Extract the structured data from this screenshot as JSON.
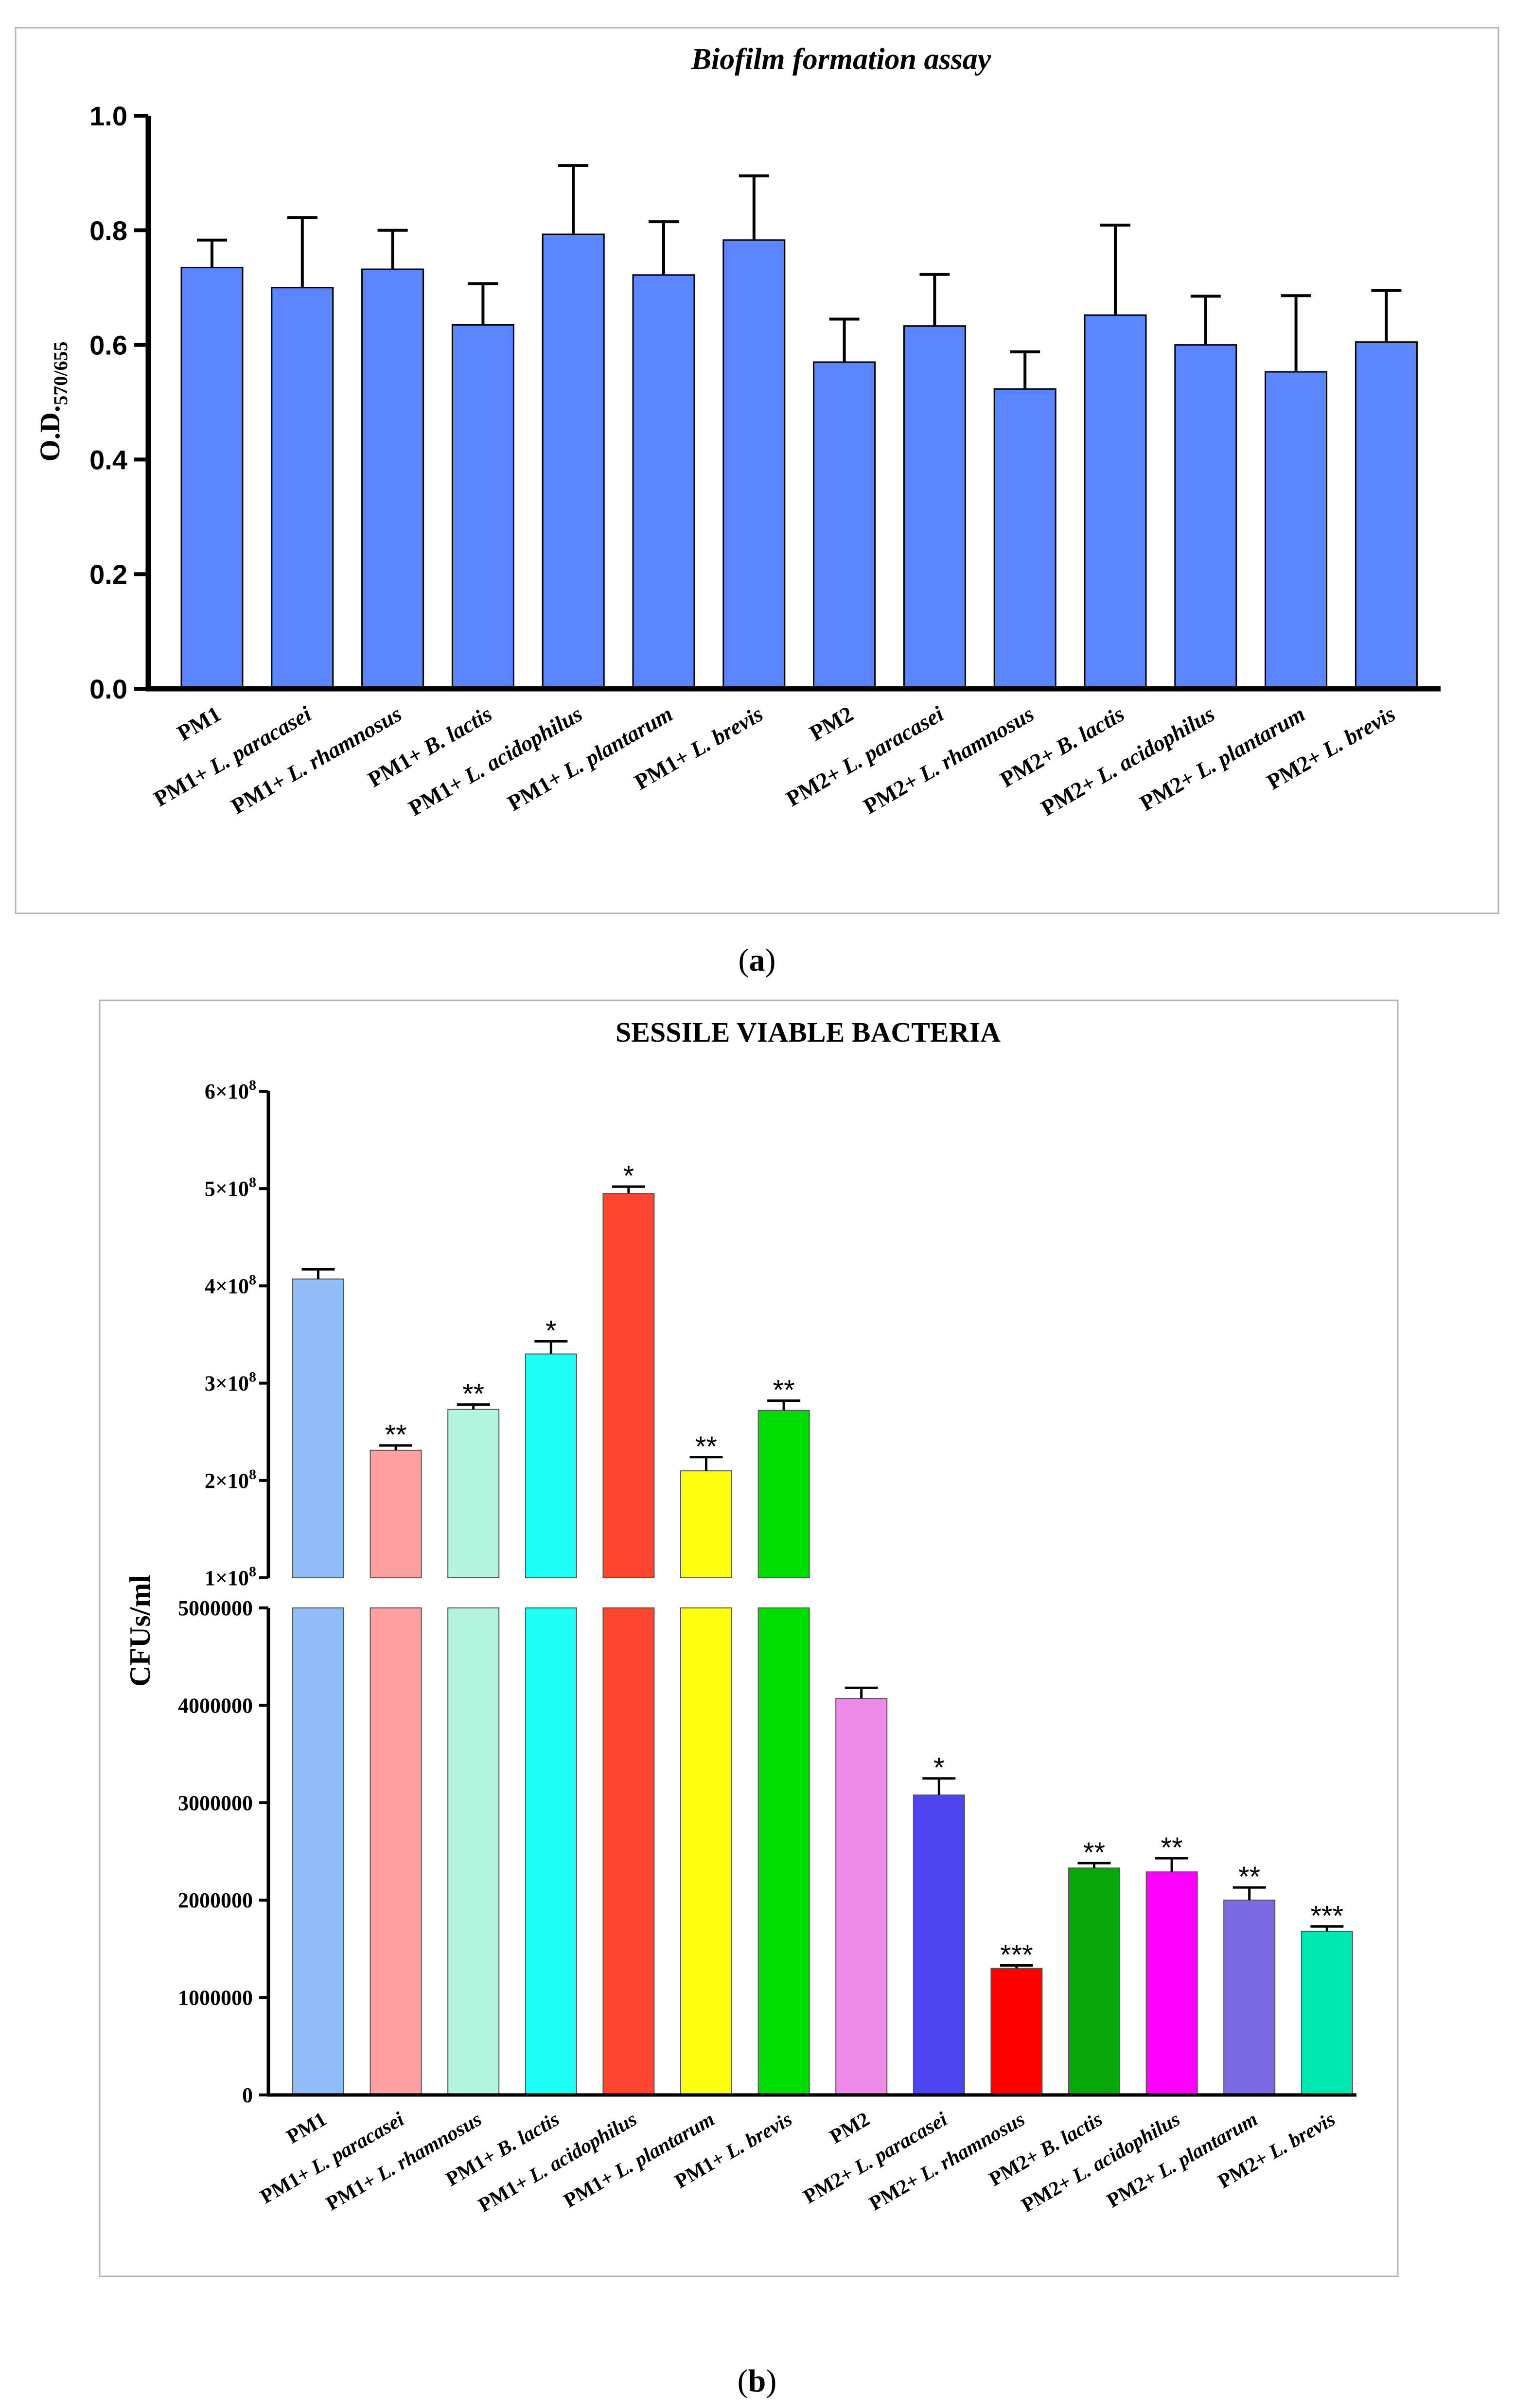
{
  "panel_a": {
    "label": "(a)"
  },
  "panel_b": {
    "label": "(b)"
  },
  "chart_data": [
    {
      "id": "a",
      "type": "bar",
      "title": "Biofilm formation assay",
      "xlabel": "",
      "ylabel": "O.D.",
      "ylabel_sub": "570/655",
      "ylim": [
        0,
        1.0
      ],
      "yticks": [
        0.0,
        0.2,
        0.4,
        0.6,
        0.8,
        1.0
      ],
      "ytick_labels": [
        "0.0",
        "0.2",
        "0.4",
        "0.6",
        "0.8",
        "1.0"
      ],
      "grid": false,
      "categories": [
        {
          "prefix": "PM1",
          "species": ""
        },
        {
          "prefix": "PM1+ ",
          "species": "L. paracasei"
        },
        {
          "prefix": "PM1+ ",
          "species": "L. rhamnosus"
        },
        {
          "prefix": "PM1+ ",
          "species": "B. lactis"
        },
        {
          "prefix": "PM1+ ",
          "species": "L. acidophilus"
        },
        {
          "prefix": "PM1+ ",
          "species": "L. plantarum"
        },
        {
          "prefix": "PM1+ ",
          "species": "L. brevis"
        },
        {
          "prefix": "PM2",
          "species": ""
        },
        {
          "prefix": "PM2+ ",
          "species": "L. paracasei"
        },
        {
          "prefix": "PM2+ ",
          "species": "L. rhamnosus"
        },
        {
          "prefix": "PM2+ ",
          "species": "B. lactis"
        },
        {
          "prefix": "PM2+ ",
          "species": "L. acidophilus"
        },
        {
          "prefix": "PM2+ ",
          "species": "L. plantarum"
        },
        {
          "prefix": "PM2+ ",
          "species": "L. brevis"
        }
      ],
      "values": [
        0.735,
        0.7,
        0.732,
        0.635,
        0.793,
        0.722,
        0.783,
        0.57,
        0.633,
        0.523,
        0.652,
        0.6,
        0.553,
        0.605
      ],
      "errors": [
        0.048,
        0.122,
        0.068,
        0.072,
        0.12,
        0.093,
        0.112,
        0.075,
        0.09,
        0.065,
        0.157,
        0.085,
        0.133,
        0.09
      ],
      "bar_color": "#5b85ff"
    },
    {
      "id": "b",
      "type": "bar",
      "title": "SESSILE VIABLE BACTERIA",
      "xlabel": "",
      "ylabel": "CFUs/ml",
      "axis_break": true,
      "upper_ylim": [
        100000000,
        600000000
      ],
      "upper_ytick_labels": [
        {
          "mant": "1×10",
          "exp": "8"
        },
        {
          "mant": "2×10",
          "exp": "8"
        },
        {
          "mant": "3×10",
          "exp": "8"
        },
        {
          "mant": "4×10",
          "exp": "8"
        },
        {
          "mant": "5×10",
          "exp": "8"
        },
        {
          "mant": "6×10",
          "exp": "8"
        }
      ],
      "lower_ylim": [
        0,
        5000000
      ],
      "lower_ytick_labels": [
        "0",
        "1000000",
        "2000000",
        "3000000",
        "4000000",
        "5000000"
      ],
      "grid": false,
      "categories": [
        {
          "prefix": "PM1",
          "species": ""
        },
        {
          "prefix": "PM1+ ",
          "species": "L. paracasei"
        },
        {
          "prefix": "PM1+ ",
          "species": "L. rhamnosus"
        },
        {
          "prefix": "PM1+ ",
          "species": "B. lactis"
        },
        {
          "prefix": "PM1+ ",
          "species": "L. acidophilus"
        },
        {
          "prefix": "PM1+ ",
          "species": "L. plantarum"
        },
        {
          "prefix": "PM1+ ",
          "species": "L. brevis"
        },
        {
          "prefix": "PM2",
          "species": ""
        },
        {
          "prefix": "PM2+ ",
          "species": "L. paracasei"
        },
        {
          "prefix": "PM2+ ",
          "species": "L. rhamnosus"
        },
        {
          "prefix": "PM2+ ",
          "species": "B. lactis"
        },
        {
          "prefix": "PM2+ ",
          "species": "L. acidophilus"
        },
        {
          "prefix": "PM2+ ",
          "species": "L. plantarum"
        },
        {
          "prefix": "PM2+ ",
          "species": "L. brevis"
        }
      ],
      "values": [
        407000000,
        231000000,
        273000000,
        330000000,
        495000000,
        210000000,
        272000000,
        4070000,
        3080000,
        1300000,
        2330000,
        2290000,
        2000000,
        1680000
      ],
      "errors": [
        10000000,
        5000000,
        5000000,
        13000000,
        7000000,
        14000000,
        10000000,
        110000,
        170000,
        30000,
        50000,
        140000,
        130000,
        50000
      ],
      "significance": [
        "",
        "**",
        "**",
        "*",
        "*",
        "**",
        "**",
        "",
        "*",
        "***",
        "**",
        "**",
        "**",
        "***"
      ],
      "colors": [
        "#90bcf7",
        "#ff9f9f",
        "#b3f5df",
        "#1ffff8",
        "#ff4630",
        "#ffff11",
        "#00dc00",
        "#ee8ae8",
        "#4b45ef",
        "#ff0000",
        "#07a807",
        "#ff00ff",
        "#7b6ae3",
        "#00e6b2"
      ]
    }
  ]
}
